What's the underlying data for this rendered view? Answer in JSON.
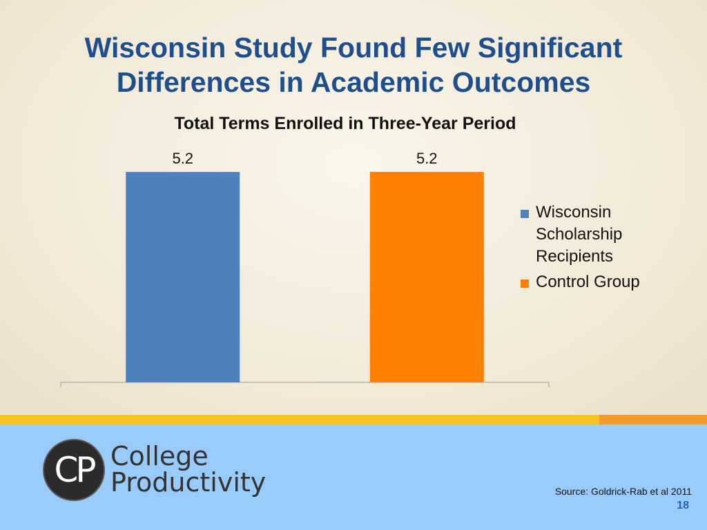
{
  "slide": {
    "title_line1": "Wisconsin Study Found Few Significant",
    "title_line2": "Differences in Academic Outcomes",
    "source": "Source: Goldrick-Rab et al 2011",
    "page_number": "18"
  },
  "logo": {
    "monogram": "CP",
    "line1": "College",
    "line2": "Productivity"
  },
  "chart_data": {
    "type": "bar",
    "title": "Total Terms Enrolled in Three-Year Period",
    "categories": [
      "Wisconsin Scholarship Recipients",
      "Control Group"
    ],
    "values": [
      5.2,
      5.2
    ],
    "data_labels": [
      "5.2",
      "5.2"
    ],
    "colors": [
      "#4f81bd",
      "#ff7f00"
    ],
    "legend": {
      "placement": "right",
      "entries": [
        {
          "lines": [
            "Wisconsin",
            "Scholarship",
            "Recipients"
          ],
          "color": "#4f81bd"
        },
        {
          "lines": [
            "Control Group"
          ],
          "color": "#ff7f00"
        }
      ]
    },
    "ylim": [
      0,
      5.8
    ],
    "grid": false,
    "xlabel": "",
    "ylabel": ""
  }
}
